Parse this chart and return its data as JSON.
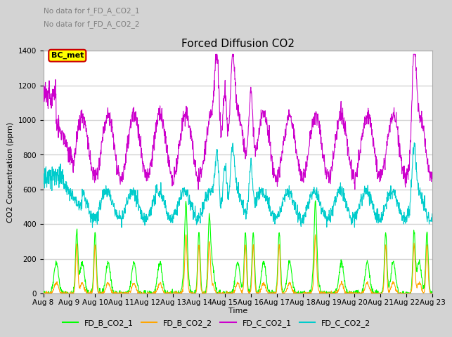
{
  "title": "Forced Diffusion CO2",
  "ylabel": "CO2 Concentration (ppm)",
  "xlabel": "Time",
  "no_data_text": [
    "No data for f_FD_A_CO2_1",
    "No data for f_FD_A_CO2_2"
  ],
  "bc_met_label": "BC_met",
  "ylim": [
    0,
    1400
  ],
  "yticks": [
    0,
    200,
    400,
    600,
    800,
    1000,
    1200,
    1400
  ],
  "x_tick_labels": [
    "Aug 8",
    "Aug 9",
    "Aug 10",
    "Aug 11",
    "Aug 12",
    "Aug 13",
    "Aug 14",
    "Aug 15",
    "Aug 16",
    "Aug 17",
    "Aug 18",
    "Aug 19",
    "Aug 20",
    "Aug 21",
    "Aug 22",
    "Aug 23"
  ],
  "legend_entries": [
    "FD_B_CO2_1",
    "FD_B_CO2_2",
    "FD_C_CO2_1",
    "FD_C_CO2_2"
  ],
  "line_colors": {
    "FD_B_CO2_1": "#00ff00",
    "FD_B_CO2_2": "#ffa500",
    "FD_C_CO2_1": "#cc00cc",
    "FD_C_CO2_2": "#00cccc"
  },
  "background_color": "#d3d3d3",
  "plot_background": "#ffffff",
  "grid_color": "#d3d3d3",
  "bc_met_box_color": "#ffff00",
  "bc_met_border_color": "#cc0000",
  "no_data_color": "#808080",
  "title_fontsize": 11,
  "axis_fontsize": 8,
  "tick_fontsize": 7.5,
  "legend_fontsize": 8
}
